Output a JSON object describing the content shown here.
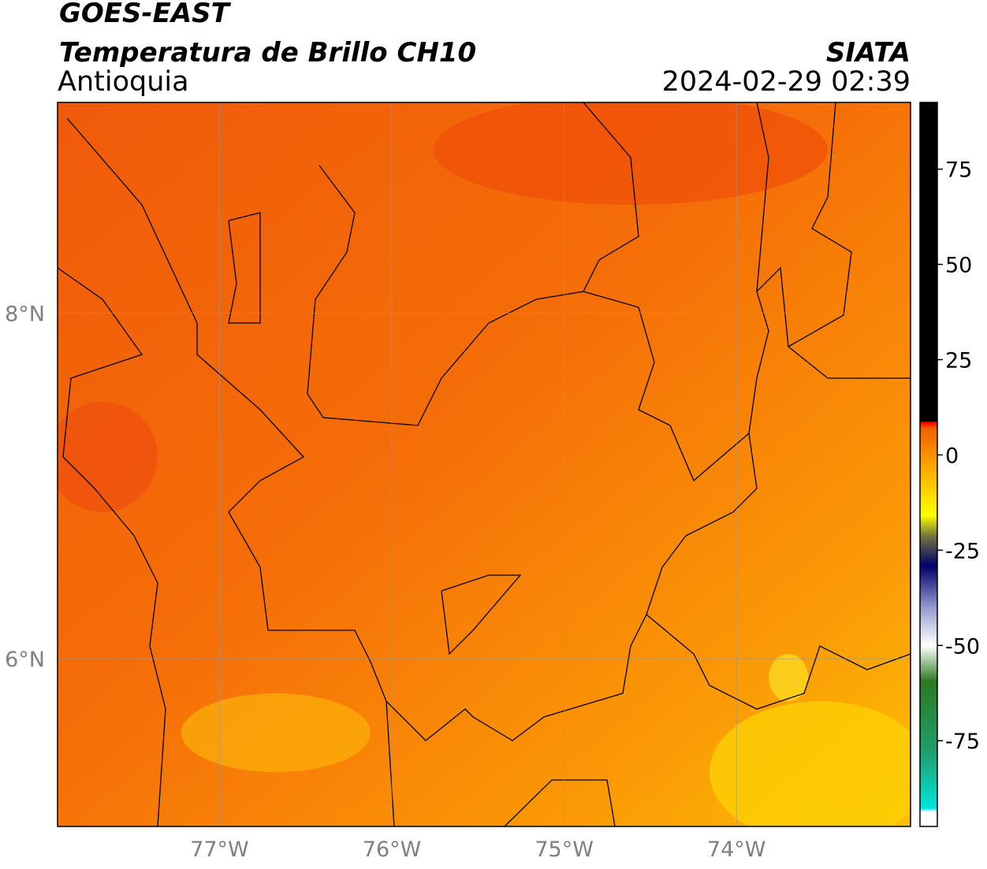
{
  "header": {
    "title": "GOES-EAST",
    "subtitle": "Temperatura de Brillo CH10",
    "region": "Antioquia",
    "source": "SIATA",
    "datetime": "2024-02-29 02:39"
  },
  "map": {
    "xlim": [
      -77.94,
      -72.99
    ],
    "ylim": [
      5.03,
      9.22
    ],
    "xticks": [
      {
        "value": -77,
        "label": "77°W"
      },
      {
        "value": -76,
        "label": "76°W"
      },
      {
        "value": -75,
        "label": "75°W"
      },
      {
        "value": -74,
        "label": "74°W"
      }
    ],
    "yticks": [
      {
        "value": 8,
        "label": "8°N"
      },
      {
        "value": 6,
        "label": "6°N"
      }
    ],
    "grid": true
  },
  "colorbar": {
    "lim": [
      -97.5,
      92.5
    ],
    "ticks": [
      75,
      50,
      25,
      0,
      -25,
      -50,
      -75
    ]
  }
}
